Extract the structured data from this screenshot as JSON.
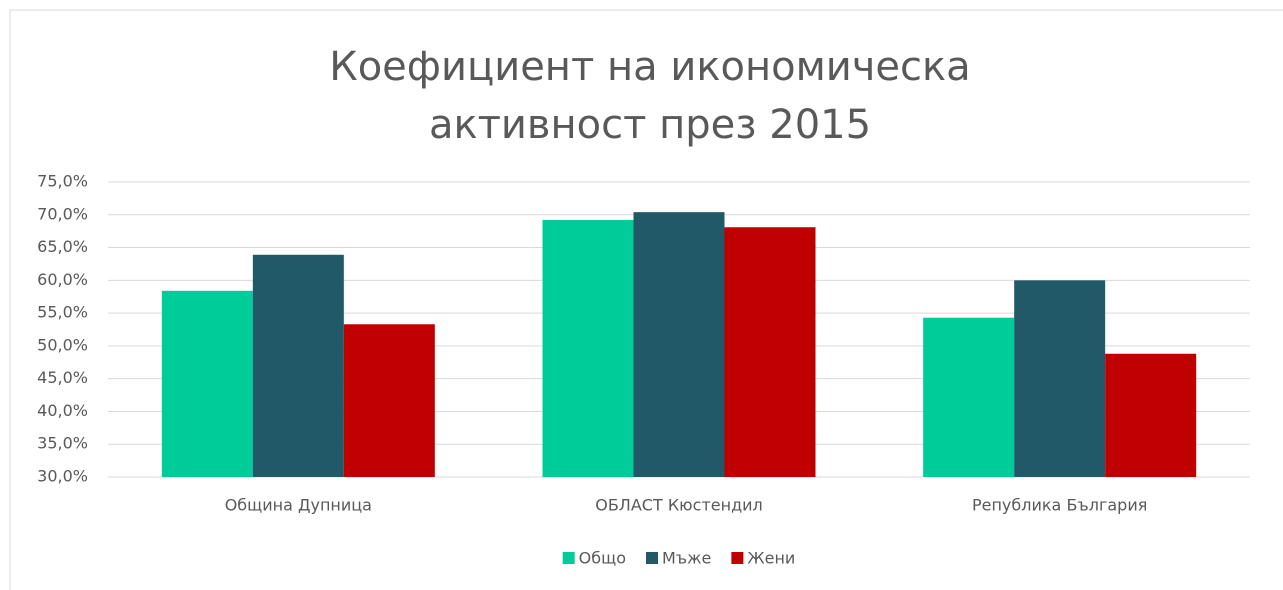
{
  "chart_data": {
    "type": "bar",
    "title": "Коефициент на икономическа активност през 2015",
    "categories": [
      "Община Дупница",
      "ОБЛАСТ Кюстендил",
      "Република България"
    ],
    "series": [
      {
        "name": "Общо",
        "color": "#00CC99",
        "values": [
          58.4,
          69.2,
          54.3
        ]
      },
      {
        "name": "Мъже",
        "color": "#215968",
        "values": [
          63.9,
          70.4,
          60.0
        ]
      },
      {
        "name": "Жени",
        "color": "#C00000",
        "values": [
          53.3,
          68.1,
          48.8
        ]
      }
    ],
    "ylim": [
      30,
      75
    ],
    "yticks": [
      {
        "value": 30,
        "label": "30,0%"
      },
      {
        "value": 35,
        "label": "35,0%"
      },
      {
        "value": 40,
        "label": "40,0%"
      },
      {
        "value": 45,
        "label": "45,0%"
      },
      {
        "value": 50,
        "label": "50,0%"
      },
      {
        "value": 55,
        "label": "55,0%"
      },
      {
        "value": 60,
        "label": "60,0%"
      },
      {
        "value": 65,
        "label": "65,0%"
      },
      {
        "value": 70,
        "label": "70,0%"
      },
      {
        "value": 75,
        "label": "75,0%"
      }
    ],
    "grid": true,
    "legend": "bottom"
  }
}
